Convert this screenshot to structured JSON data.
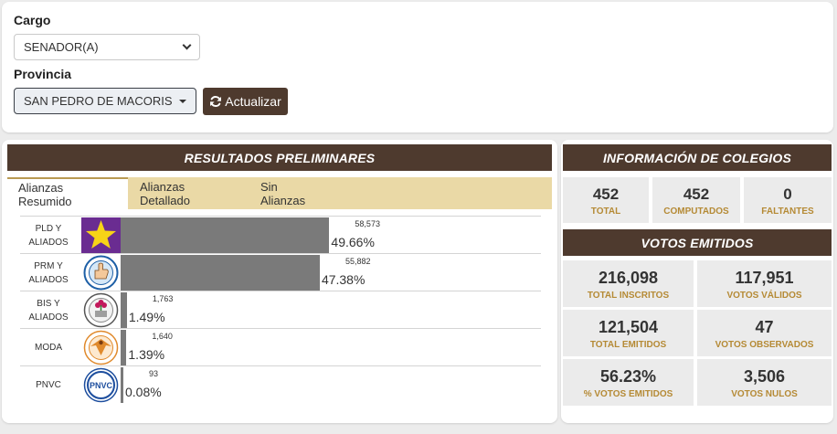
{
  "filters": {
    "cargo_label": "Cargo",
    "cargo_value": "SENADOR(A)",
    "provincia_label": "Provincia",
    "provincia_value": "SAN PEDRO DE MACORIS",
    "update_button": "Actualizar",
    "update_icon": "sync-icon"
  },
  "results": {
    "title": "RESULTADOS PRELIMINARES",
    "tabs": [
      "Alianzas Resumido",
      "Alianzas Detallado",
      "Sin Alianzas"
    ],
    "active_tab": 0
  },
  "chart_data": {
    "type": "bar",
    "orientation": "horizontal",
    "categories": [
      "PLD Y ALIADOS",
      "PRM Y ALIADOS",
      "BIS Y ALIADOS",
      "MODA",
      "PNVC"
    ],
    "values": [
      58573,
      55882,
      1763,
      1640,
      93
    ],
    "value_labels": [
      "58,573",
      "55,882",
      "1,763",
      "1,640",
      "93"
    ],
    "percent_labels": [
      "49.66%",
      "47.38%",
      "1.49%",
      "1.39%",
      "0.08%"
    ],
    "percent": [
      49.66,
      47.38,
      1.49,
      1.39,
      0.08
    ],
    "logos": [
      "pld-star-logo",
      "prm-hand-logo",
      "bis-flower-logo",
      "moda-bird-logo",
      "pnvc-logo"
    ],
    "logo_text": [
      "",
      "",
      "",
      "",
      "PNVC"
    ],
    "bar_color": "#7a7a7a"
  },
  "colegios": {
    "title": "INFORMACIÓN DE COLEGIOS",
    "items": [
      {
        "value": "452",
        "label": "TOTAL"
      },
      {
        "value": "452",
        "label": "COMPUTADOS"
      },
      {
        "value": "0",
        "label": "FALTANTES"
      }
    ]
  },
  "votos": {
    "title": "VOTOS EMITIDOS",
    "items": [
      {
        "value": "216,098",
        "label": "TOTAL INSCRITOS"
      },
      {
        "value": "117,951",
        "label": "VOTOS VÁLIDOS"
      },
      {
        "value": "121,504",
        "label": "TOTAL EMITIDOS"
      },
      {
        "value": "47",
        "label": "VOTOS OBSERVADOS"
      },
      {
        "value": "56.23%",
        "label": "% VOTOS EMITIDOS"
      },
      {
        "value": "3,506",
        "label": "VOTOS NULOS"
      }
    ]
  },
  "colors": {
    "brand_dark": "#4e3a2e",
    "tab_bar": "#ead9a6",
    "accent_label": "#b58a35"
  }
}
